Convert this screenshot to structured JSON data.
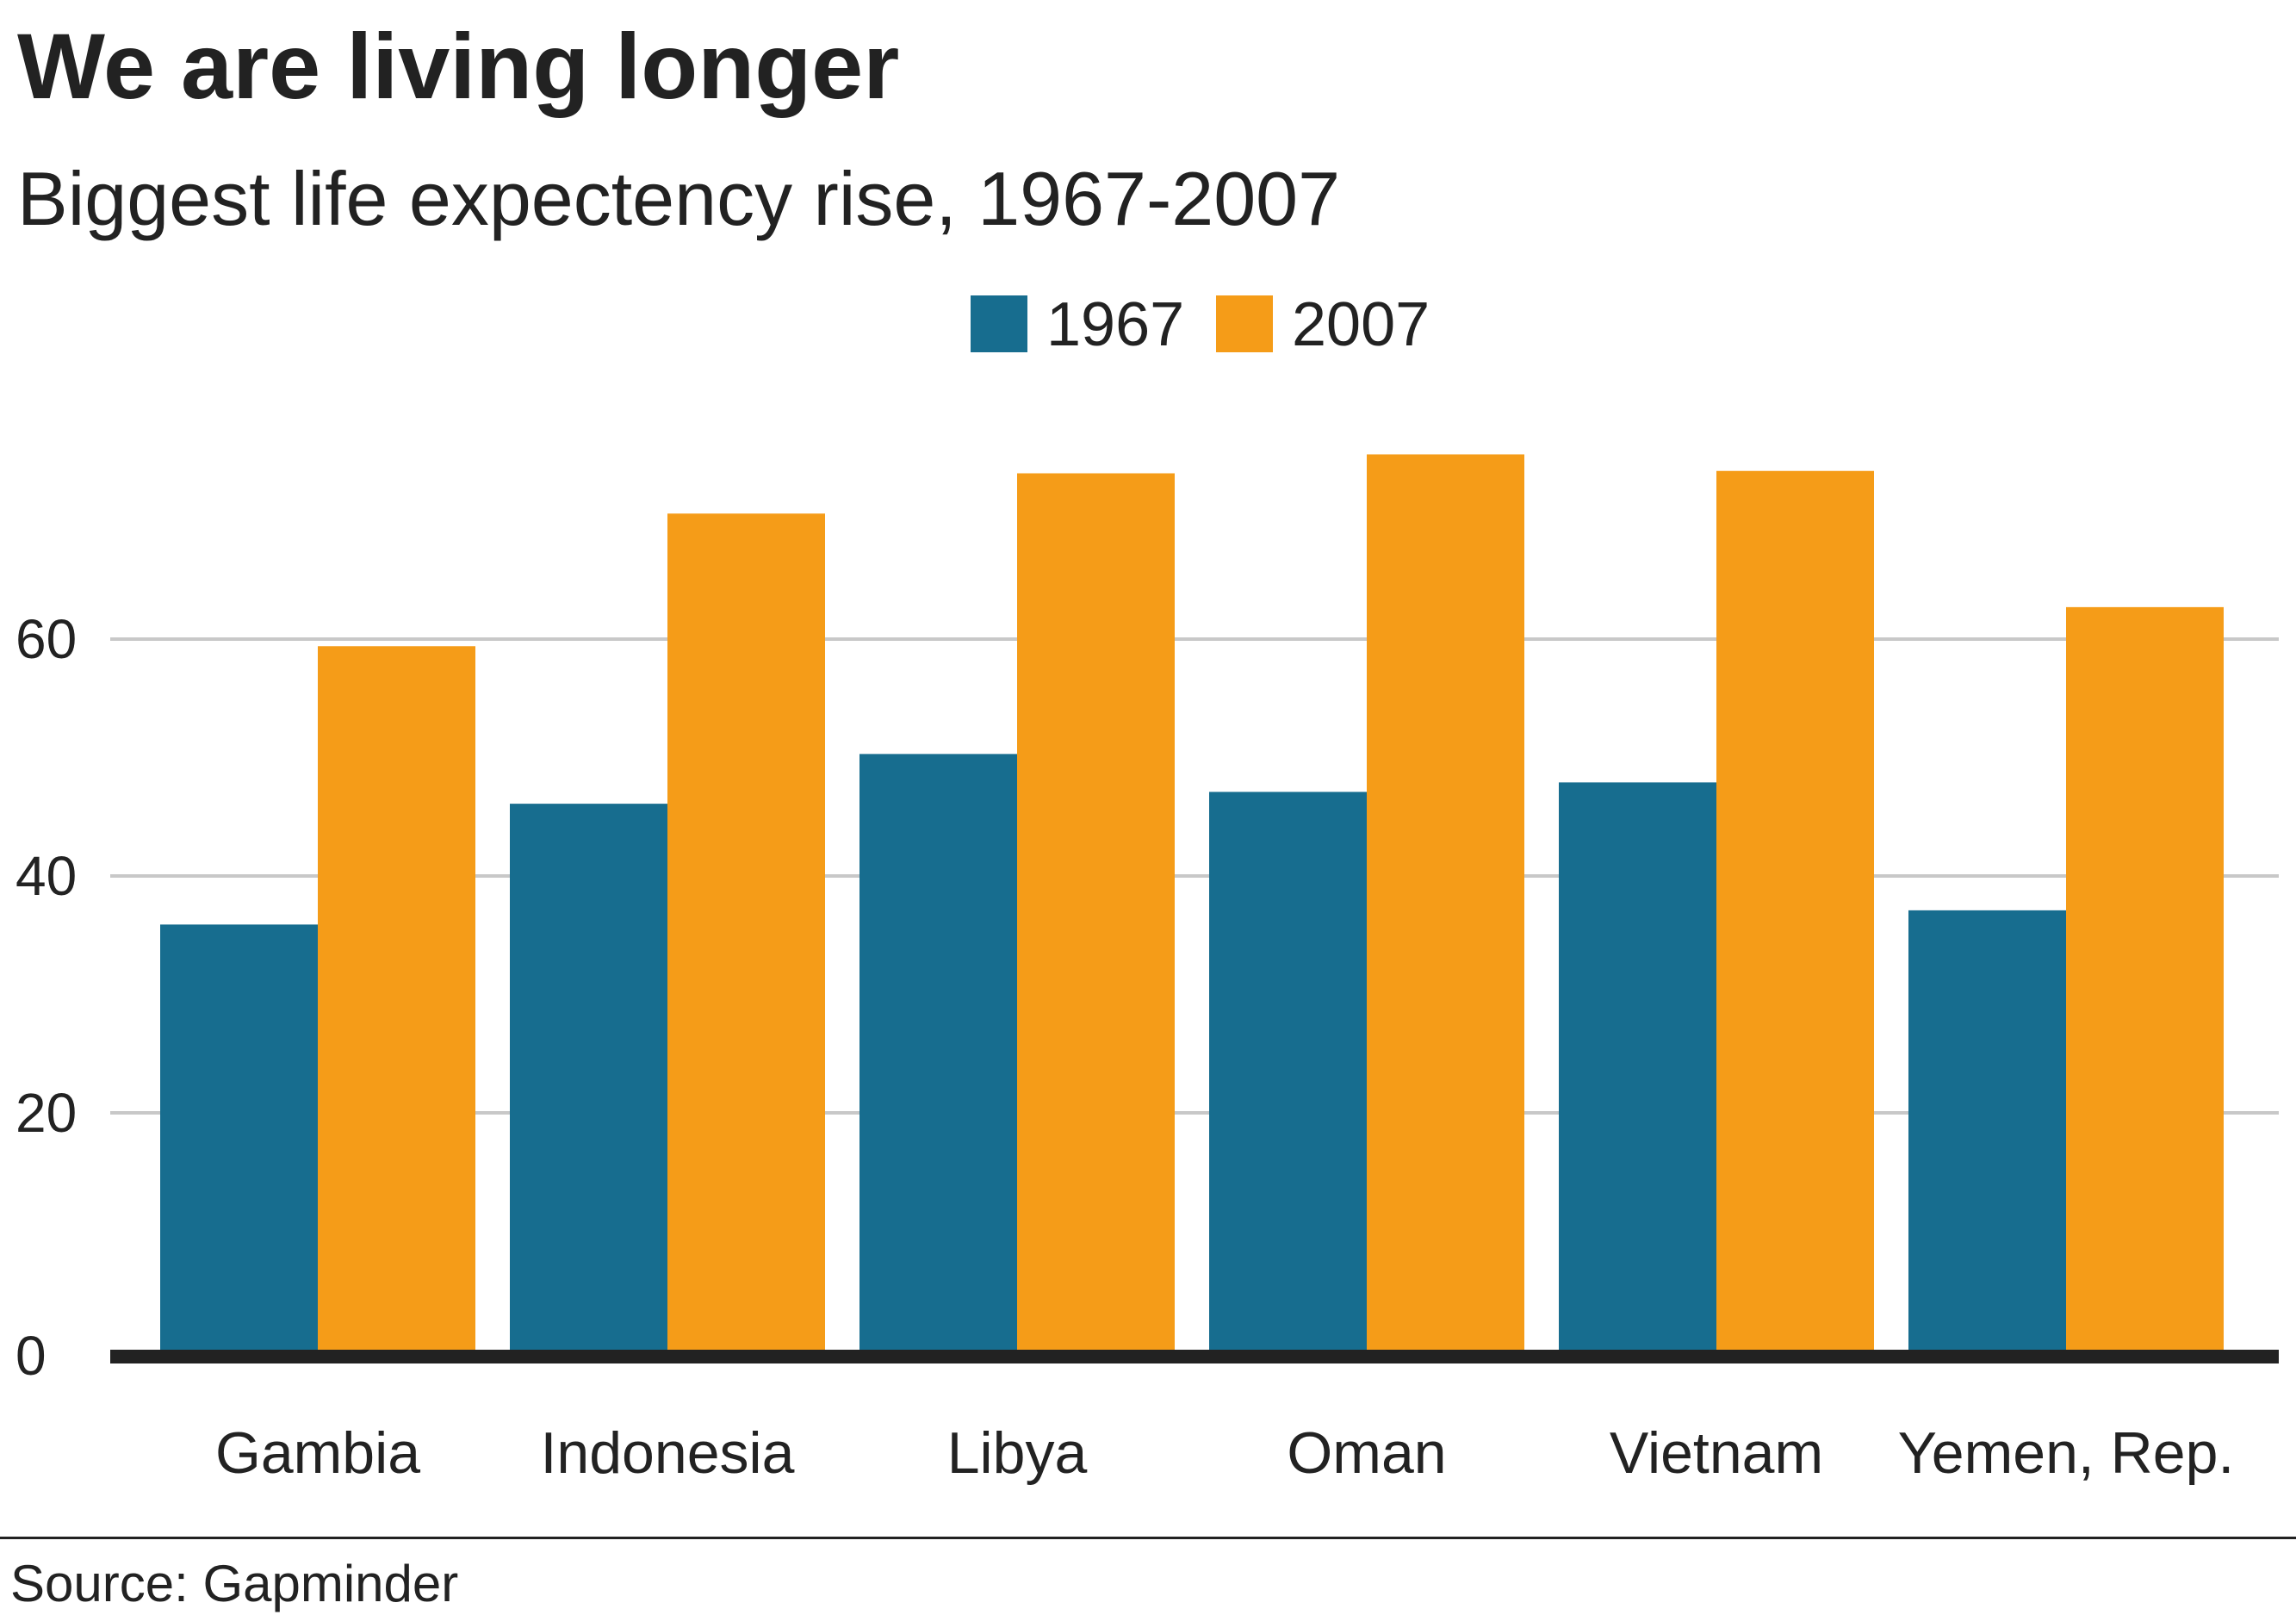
{
  "header": {
    "title": "We are living longer",
    "subtitle": "Biggest life expectency rise, 1967-2007"
  },
  "footer": {
    "source": "Source: Gapminder"
  },
  "chart_data": {
    "type": "bar",
    "title": "We are living longer",
    "subtitle": "Biggest life expectency rise, 1967-2007",
    "xlabel": "",
    "ylabel": "",
    "categories": [
      "Gambia",
      "Indonesia",
      "Libya",
      "Oman",
      "Vietnam",
      "Yemen, Rep."
    ],
    "series": [
      {
        "name": "1967",
        "color": "#176d8f",
        "values": [
          35.9,
          46.1,
          50.3,
          47.1,
          47.9,
          37.1
        ]
      },
      {
        "name": "2007",
        "color": "#f59c18",
        "values": [
          59.4,
          70.6,
          74.0,
          75.6,
          74.2,
          62.7
        ]
      }
    ],
    "ylim": [
      0,
      80
    ],
    "yticks": [
      0,
      20,
      40,
      60
    ],
    "ytick_labels": [
      "0",
      "20",
      "40",
      "60"
    ],
    "grid": true,
    "legend": "top-center",
    "colors": {
      "grid": "#c8c8c8",
      "baseline": "#222222",
      "text": "#222222"
    }
  }
}
